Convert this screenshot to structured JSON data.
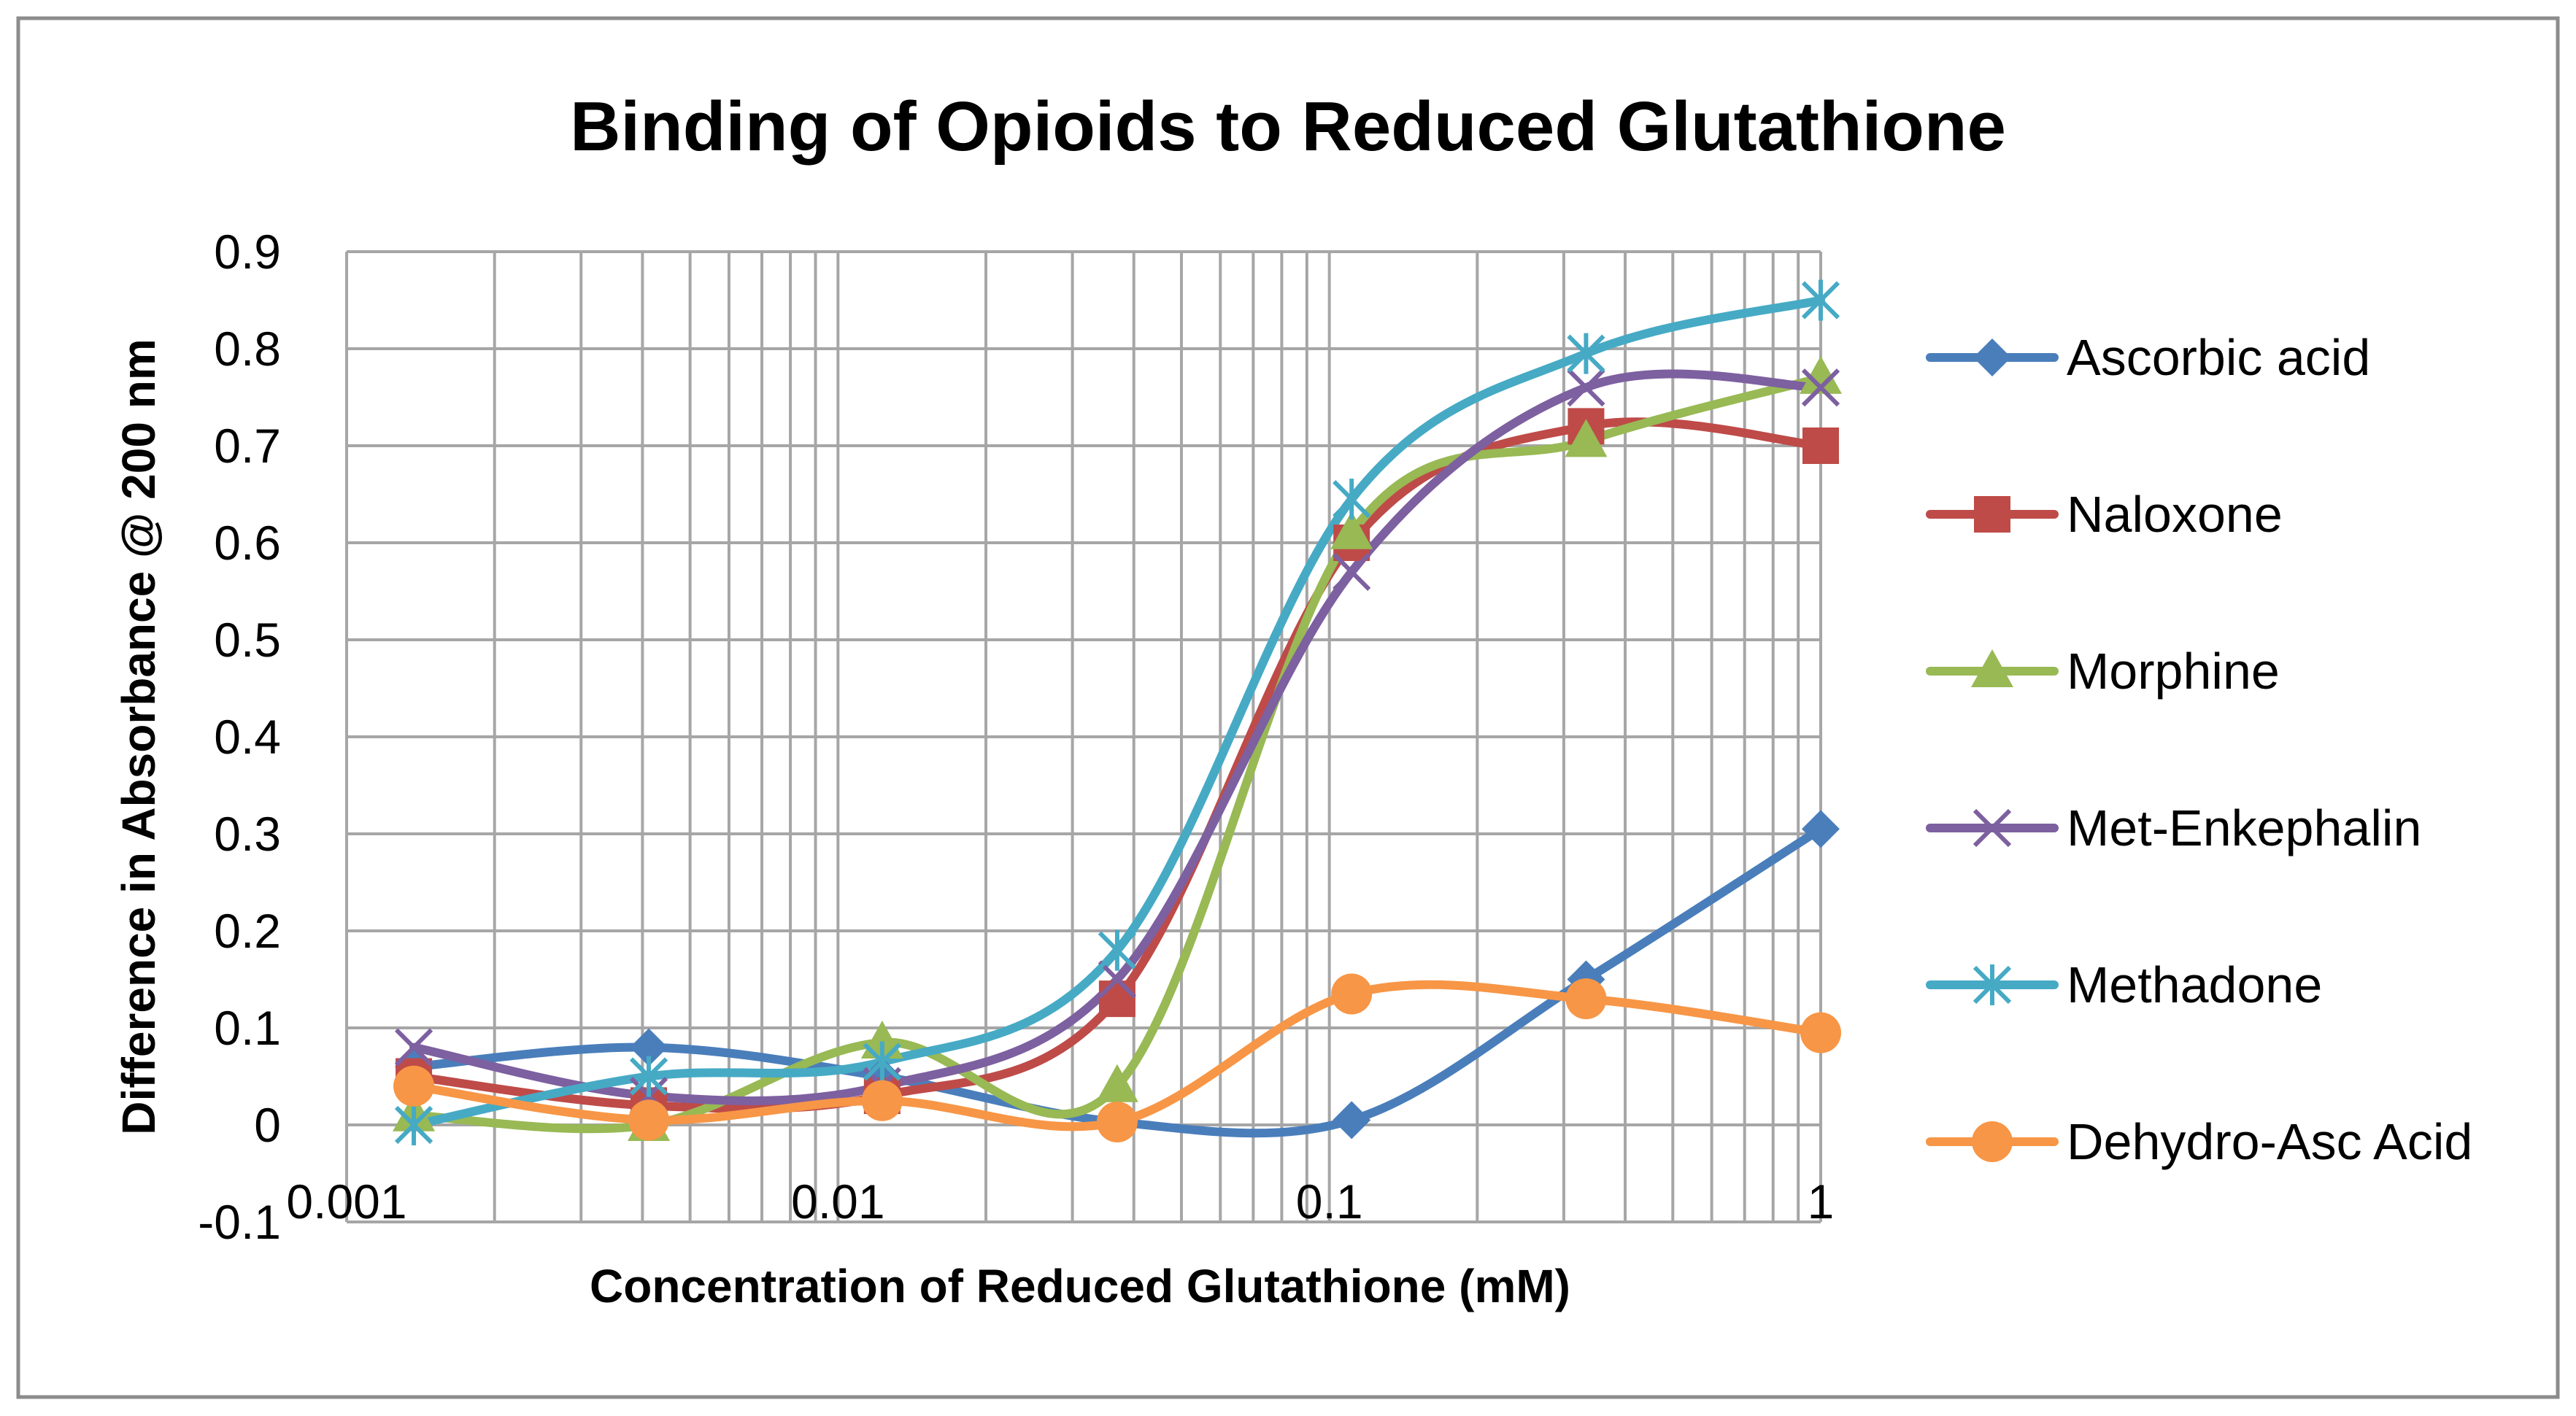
{
  "chart_data": {
    "type": "line",
    "title": "Binding of Opioids to Reduced Glutathione",
    "xlabel": "Concentration of Reduced Glutathione (mM)",
    "ylabel": "Difference in Absorbance @ 200 nm",
    "xscale": "log",
    "xlim": [
      0.001,
      1
    ],
    "ylim": [
      -0.1,
      0.9
    ],
    "x_ticks": [
      {
        "value": 0.001,
        "label": "0.001"
      },
      {
        "value": 0.01,
        "label": "0.01"
      },
      {
        "value": 0.1,
        "label": "0.1"
      },
      {
        "value": 1,
        "label": "1"
      }
    ],
    "y_ticks": [
      {
        "value": -0.1,
        "label": "-0.1"
      },
      {
        "value": 0,
        "label": "0"
      },
      {
        "value": 0.1,
        "label": "0.1"
      },
      {
        "value": 0.2,
        "label": "0.2"
      },
      {
        "value": 0.3,
        "label": "0.3"
      },
      {
        "value": 0.4,
        "label": "0.4"
      },
      {
        "value": 0.5,
        "label": "0.5"
      },
      {
        "value": 0.6,
        "label": "0.6"
      },
      {
        "value": 0.7,
        "label": "0.7"
      },
      {
        "value": 0.8,
        "label": "0.8"
      },
      {
        "value": 0.9,
        "label": "0.9"
      }
    ],
    "grid": true,
    "smooth": true,
    "legend_position": "right",
    "x": [
      0.00137,
      0.00412,
      0.0123,
      0.037,
      0.111,
      0.333,
      1
    ],
    "series": [
      {
        "name": "Ascorbic acid",
        "color": "#4a7ebb",
        "marker": "diamond",
        "values": [
          0.06,
          0.08,
          0.05,
          0.003,
          0.005,
          0.15,
          0.305
        ]
      },
      {
        "name": "Naloxone",
        "color": "#be4b48",
        "marker": "square",
        "values": [
          0.05,
          0.02,
          0.03,
          0.13,
          0.6,
          0.72,
          0.7
        ]
      },
      {
        "name": "Morphine",
        "color": "#98b954",
        "marker": "triangle",
        "values": [
          0.01,
          0.0,
          0.085,
          0.04,
          0.61,
          0.705,
          0.77
        ]
      },
      {
        "name": "Met-Enkephalin",
        "color": "#7d60a0",
        "marker": "x",
        "values": [
          0.08,
          0.03,
          0.04,
          0.15,
          0.57,
          0.76,
          0.76
        ]
      },
      {
        "name": "Methadone",
        "color": "#46aac5",
        "marker": "star",
        "values": [
          0.0,
          0.05,
          0.065,
          0.18,
          0.645,
          0.795,
          0.85
        ]
      },
      {
        "name": "Dehydro-Asc Acid",
        "color": "#f79646",
        "marker": "circle",
        "values": [
          0.04,
          0.005,
          0.025,
          0.003,
          0.135,
          0.13,
          0.095
        ]
      }
    ]
  }
}
